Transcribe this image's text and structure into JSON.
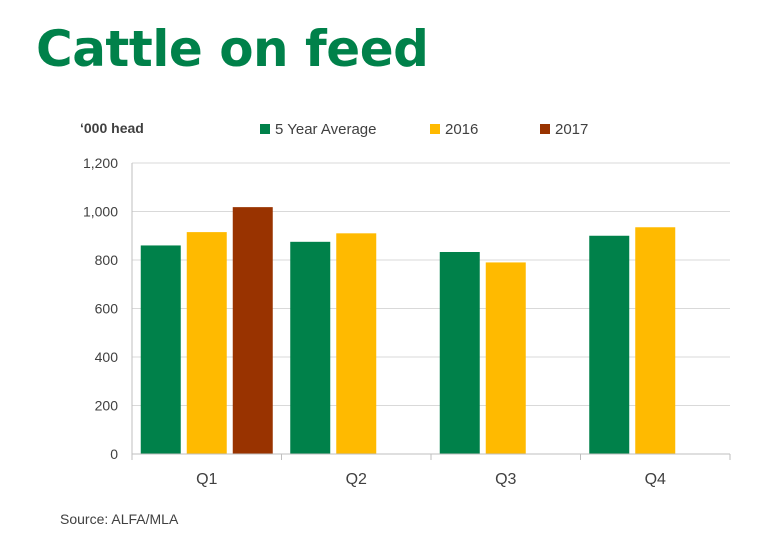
{
  "title": "Cattle on feed",
  "source": "Source: ALFA/MLA",
  "chart_data": {
    "type": "bar",
    "ylabel": "‘000 head",
    "categories": [
      "Q1",
      "Q2",
      "Q3",
      "Q4"
    ],
    "series": [
      {
        "name": "5 Year Average",
        "values": [
          860,
          875,
          833,
          900
        ],
        "color": "#00814A"
      },
      {
        "name": "2016",
        "values": [
          915,
          910,
          790,
          935
        ],
        "color": "#FFBA00"
      },
      {
        "name": "2017",
        "values": [
          1018,
          null,
          null,
          null
        ],
        "color": "#993300"
      }
    ],
    "ylim": [
      0,
      1200
    ],
    "yticks": [
      "0",
      "200",
      "400",
      "600",
      "800",
      "1,000",
      "1,200"
    ],
    "grid": true,
    "legend": "top"
  }
}
